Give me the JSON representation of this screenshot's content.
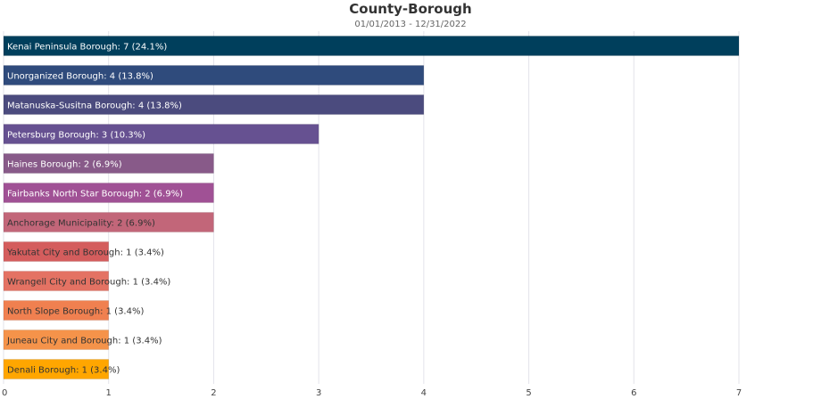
{
  "chart_data": {
    "type": "bar",
    "orientation": "horizontal",
    "title": "County-Borough",
    "subtitle": "01/01/2013 - 12/31/2022",
    "xlim": [
      0,
      7
    ],
    "x_ticks": [
      0,
      1,
      2,
      3,
      4,
      5,
      6,
      7
    ],
    "grid": true,
    "categories": [
      "Kenai Peninsula Borough",
      "Unorganized Borough",
      "Matanuska-Susitna Borough",
      "Petersburg Borough",
      "Haines Borough",
      "Fairbanks North Star Borough",
      "Anchorage Municipality",
      "Yakutat City and Borough",
      "Wrangell City and Borough",
      "North Slope Borough",
      "Juneau City and Borough",
      "Denali Borough"
    ],
    "values": [
      7,
      4,
      4,
      3,
      2,
      2,
      2,
      1,
      1,
      1,
      1,
      1
    ],
    "labels": [
      "Kenai Peninsula Borough: 7 (24.1%)",
      "Unorganized Borough: 4 (13.8%)",
      "Matanuska-Susitna Borough: 4 (13.8%)",
      "Petersburg Borough: 3 (10.3%)",
      "Haines Borough: 2 (6.9%)",
      "Fairbanks North Star Borough: 2 (6.9%)",
      "Anchorage Municipality: 2 (6.9%)",
      "Yakutat City and Borough: 1 (3.4%)",
      "Wrangell City and Borough: 1 (3.4%)",
      "North Slope Borough: 1 (3.4%)",
      "Juneau City and Borough: 1 (3.4%)",
      "Denali Borough: 1 (3.4%)"
    ],
    "colors": [
      "#003f5c",
      "#2f4b7c",
      "#4b4b7e",
      "#665191",
      "#885a89",
      "#a05195",
      "#c26679",
      "#d45d5d",
      "#e47263",
      "#f08050",
      "#f5934a",
      "#ffa600"
    ],
    "label_colors": [
      "#ffffff",
      "#ffffff",
      "#ffffff",
      "#ffffff",
      "#ffffff",
      "#ffffff",
      "#333333",
      "#333333",
      "#333333",
      "#333333",
      "#333333",
      "#333333"
    ]
  }
}
